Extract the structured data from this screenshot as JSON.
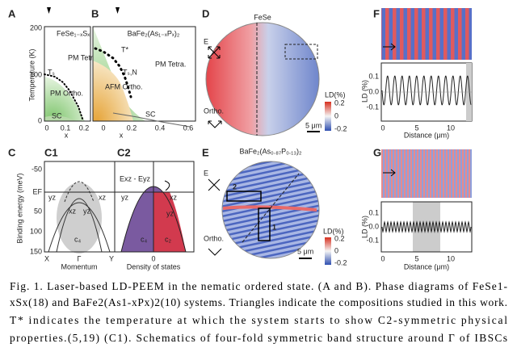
{
  "panels": {
    "A": {
      "label": "A",
      "title": "FeSe₁₋ₓSₓ",
      "ylabel": "Temperature (K)",
      "yticks": [
        200,
        100,
        0
      ],
      "xticks": [
        0,
        0.1,
        0.2
      ],
      "xlabel": "x",
      "phases": [
        "PM Tetra.",
        "PM Ortho.",
        "SC"
      ],
      "ts": "Tₛ"
    },
    "B": {
      "label": "B",
      "title": "BaFe₂(As₁₋ₓPₓ)₂",
      "xticks": [
        0,
        0.2,
        0.4,
        0.6
      ],
      "xlabel": "x",
      "phases": [
        "PM Tetra.",
        "AFM Ortho.",
        "SC"
      ],
      "tstar": "T*",
      "tsn": "Tₛ,N"
    },
    "C": {
      "label": "C",
      "c1": "C1",
      "c2": "C2",
      "ylabel": "Binding energy (meV)",
      "yticks": [
        -50,
        "EF",
        50,
        100,
        150
      ],
      "bands": [
        "yz",
        "xz",
        "xz",
        "yz",
        "yz",
        "xz",
        "yz"
      ],
      "c4": "c₄",
      "c4b": "c₄",
      "c2lab": "c₂",
      "gap": "Exz - Eyz",
      "kticks": [
        "X",
        "Γ",
        "Y"
      ],
      "xlabel1": "Momentum",
      "dos0": "0",
      "xlabel2": "Density of states"
    },
    "D": {
      "label": "D",
      "title": "FeSe",
      "e": "E",
      "ortho": "Ortho.",
      "cbar": "LD(%)",
      "cticks": [
        0.2,
        0,
        -0.2
      ],
      "scale": "5 μm"
    },
    "E": {
      "label": "E",
      "title": "BaFe₂(As₀.₈₇P₀.₁₃)₂",
      "e": "E",
      "ortho": "Ortho.",
      "cbar": "LD(%)",
      "cticks": [
        0.2,
        0,
        -0.2
      ],
      "scale": "5 μm",
      "boxes": [
        "2",
        "1"
      ]
    },
    "F": {
      "label": "F",
      "ylabel": "LD (%)",
      "yticks": [
        0.1,
        "0.0",
        -0.1
      ],
      "xticks": [
        0,
        5,
        10
      ],
      "xlabel": "Distance (μm)"
    },
    "G": {
      "label": "G",
      "ylabel": "LD (%)",
      "yticks": [
        0.1,
        "0.0",
        -0.1
      ],
      "xticks": [
        0,
        5,
        10
      ],
      "xlabel": "Distance (μm)"
    }
  },
  "caption": [
    "Fig. 1. Laser-based LD-PEEM in the nematic ordered state. (A and B). Phase diagrams of FeSe1-",
    "xSx(18) and BaFe2(As1-xPx)2(10) systems. Triangles indicate the compositions studied in this work.",
    "T* indicates the temperature at which the system starts to show C2-symmetric physical",
    "properties.(5,19) (C1). Schematics of four-fold symmetric band structure around Γ of IBSCs"
  ]
}
